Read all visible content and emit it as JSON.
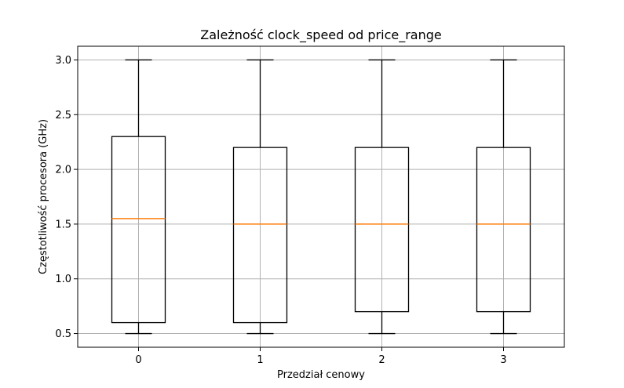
{
  "chart_data": {
    "type": "box",
    "title": "Zależność clock_speed od price_range",
    "xlabel": "Przedział cenowy",
    "ylabel": "Częstotliwość procesora (GHz)",
    "categories": [
      "0",
      "1",
      "2",
      "3"
    ],
    "boxes": [
      {
        "category": "0",
        "whisker_low": 0.5,
        "q1": 0.6,
        "median": 1.55,
        "q3": 2.3,
        "whisker_high": 3.0
      },
      {
        "category": "1",
        "whisker_low": 0.5,
        "q1": 0.6,
        "median": 1.5,
        "q3": 2.2,
        "whisker_high": 3.0
      },
      {
        "category": "2",
        "whisker_low": 0.5,
        "q1": 0.7,
        "median": 1.5,
        "q3": 2.2,
        "whisker_high": 3.0
      },
      {
        "category": "3",
        "whisker_low": 0.5,
        "q1": 0.7,
        "median": 1.5,
        "q3": 2.2,
        "whisker_high": 3.0
      }
    ],
    "y_ticks": [
      "0.5",
      "1.0",
      "1.5",
      "2.0",
      "2.5",
      "3.0"
    ],
    "ylim": [
      0.375,
      3.125
    ],
    "grid": true,
    "colors": {
      "box": "#000000",
      "median": "#ff7f0e",
      "grid": "#b0b0b0"
    }
  }
}
